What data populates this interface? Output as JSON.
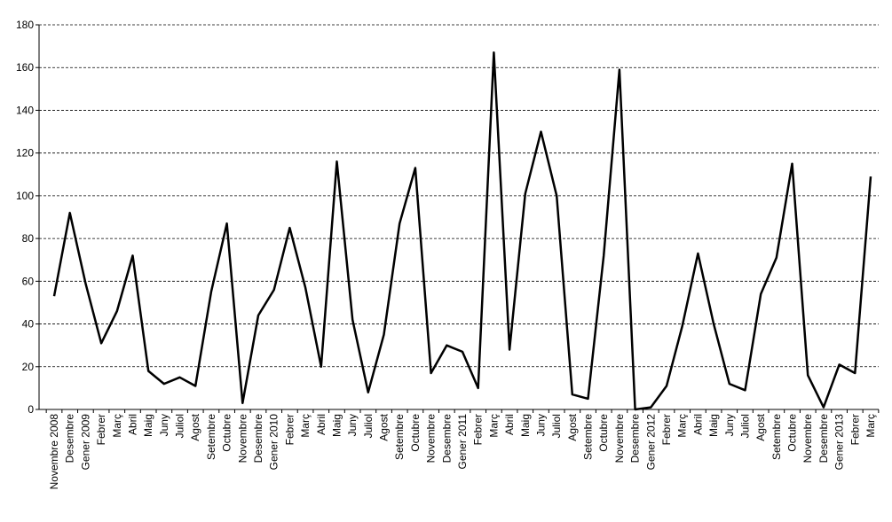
{
  "chart_data": {
    "type": "line",
    "title": "",
    "xlabel": "",
    "ylabel": "",
    "ylim": [
      0,
      180
    ],
    "yticks": [
      0,
      20,
      40,
      60,
      80,
      100,
      120,
      140,
      160,
      180
    ],
    "grid": true,
    "legend": "none",
    "line_color": "#000000",
    "categories": [
      "Novembre 2008",
      "Desembre",
      "Gener 2009",
      "Febrer",
      "Març",
      "Abril",
      "Maig",
      "Juny",
      "Juliol",
      "Agost",
      "Setembre",
      "Octubre",
      "Novembre",
      "Desembre",
      "Gener 2010",
      "Febrer",
      "Març",
      "Abril",
      "Maig",
      "Juny",
      "Juliol",
      "Agost",
      "Setembre",
      "Octubre",
      "Novembre",
      "Desembre",
      "Gener 2011",
      "Febrer",
      "Març",
      "Abril",
      "Maig",
      "Juny",
      "Juliol",
      "Agost",
      "Setembre",
      "Octubre",
      "Novembre",
      "Desembre",
      "Gener 2012",
      "Febrer",
      "Març",
      "Abril",
      "Maig",
      "Juny",
      "Juliol",
      "Agost",
      "Setembre",
      "Octubre",
      "Novembre",
      "Desembre",
      "Gener 2013",
      "Febrer",
      "Març"
    ],
    "series": [
      {
        "values": [
          53,
          92,
          59,
          31,
          46,
          72,
          18,
          12,
          15,
          11,
          55,
          87,
          3,
          44,
          56,
          85,
          57,
          20,
          116,
          42,
          8,
          35,
          87,
          113,
          17,
          30,
          27,
          10,
          167,
          28,
          101,
          130,
          100,
          7,
          5,
          72,
          159,
          0,
          1,
          11,
          39,
          73,
          40,
          12,
          9,
          54,
          71,
          115,
          16,
          1,
          21,
          17,
          109
        ]
      }
    ]
  }
}
